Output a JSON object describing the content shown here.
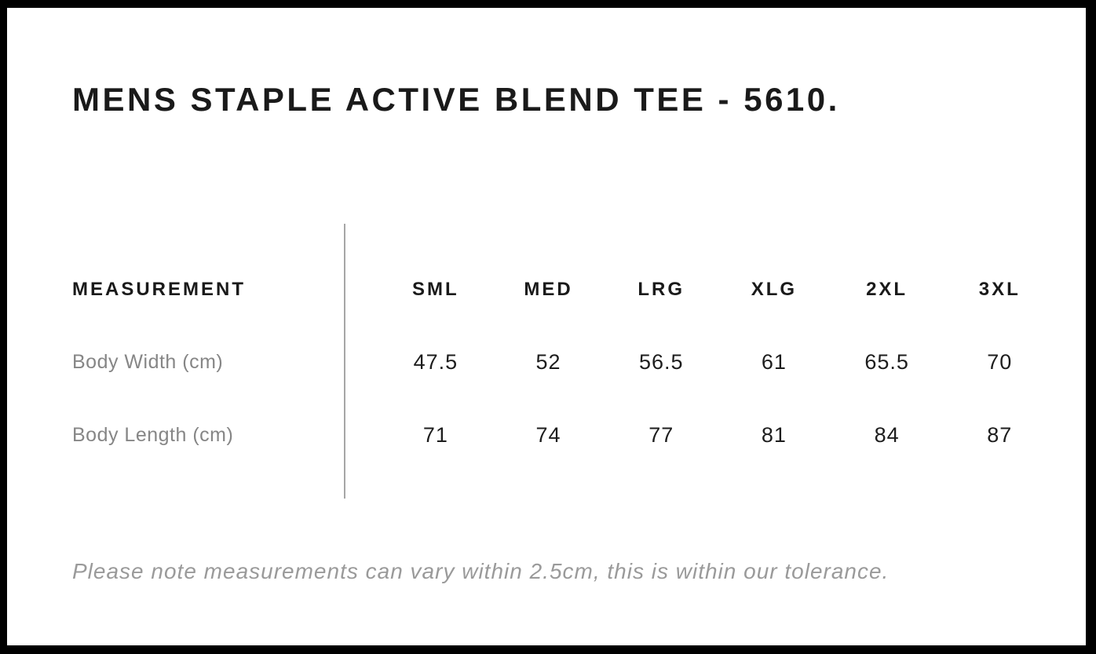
{
  "chart_data": {
    "type": "table",
    "title": "MENS STAPLE ACTIVE BLEND TEE - 5610.",
    "columns": [
      "MEASUREMENT",
      "SML",
      "MED",
      "LRG",
      "XLG",
      "2XL",
      "3XL"
    ],
    "rows": [
      [
        "Body Width (cm)",
        47.5,
        52,
        56.5,
        61,
        65.5,
        70
      ],
      [
        "Body Length (cm)",
        71,
        74,
        77,
        81,
        84,
        87
      ]
    ],
    "footnote": "Please note measurements can vary within 2.5cm, this is within our tolerance."
  },
  "colors": {
    "frame": "#000000",
    "text_primary": "#1a1a1a",
    "row_label_gray": "#868686",
    "note_gray": "#9a9a9a",
    "divider_gray": "#a6a6a6",
    "background": "#ffffff"
  }
}
